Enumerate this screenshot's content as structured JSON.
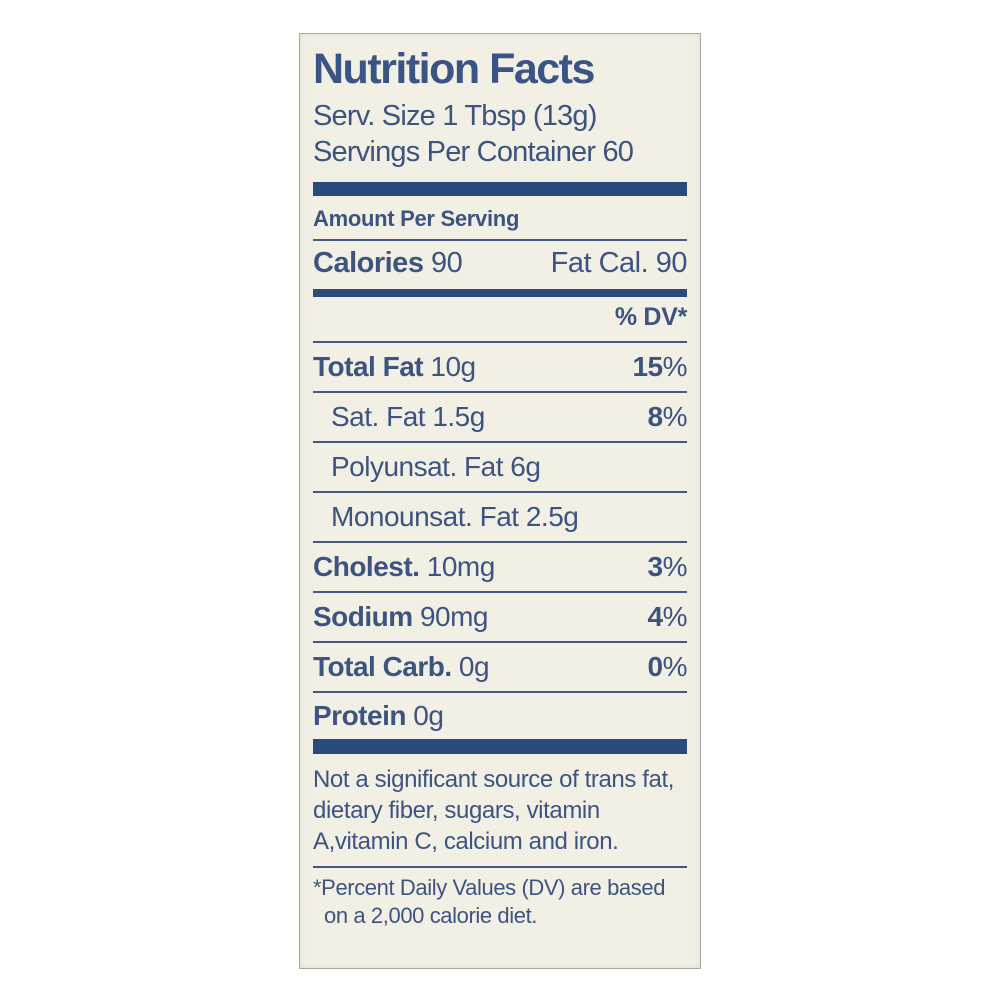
{
  "label": {
    "title": "Nutrition Facts",
    "serving_size": "Serv. Size 1 Tbsp (13g)",
    "servings_per_container": "Servings Per Container 60",
    "amount_per_serving": "Amount Per Serving",
    "calories_label": "Calories",
    "calories_value": "90",
    "fat_calories": "Fat Cal. 90",
    "dv_header": "% DV*",
    "rows": [
      {
        "label": "Total Fat",
        "value": "10g",
        "dv": "15",
        "bold": true,
        "indent": false
      },
      {
        "label": "Sat. Fat",
        "value": "1.5g",
        "dv": "8",
        "bold": false,
        "indent": true
      },
      {
        "label": "Polyunsat. Fat",
        "value": "6g",
        "dv": "",
        "bold": false,
        "indent": true
      },
      {
        "label": "Monounsat. Fat",
        "value": "2.5g",
        "dv": "",
        "bold": false,
        "indent": true
      },
      {
        "label": "Cholest.",
        "value": "10mg",
        "dv": "3",
        "bold": true,
        "indent": false
      },
      {
        "label": "Sodium",
        "value": "90mg",
        "dv": "4",
        "bold": true,
        "indent": false
      },
      {
        "label": "Total Carb.",
        "value": "0g",
        "dv": "0",
        "bold": true,
        "indent": false
      },
      {
        "label": "Protein",
        "value": "0g",
        "dv": "",
        "bold": true,
        "indent": false
      }
    ],
    "percent_sign": "%",
    "not_significant": "Not a significant source of trans fat, dietary fiber, sugars, vitamin A,vitamin C, calcium and iron.",
    "footnote_star": "*",
    "footnote": "Percent Daily Values (DV) are based on a 2,000 calorie diet.",
    "colors": {
      "text": "#3e5480",
      "bar": "#2b4a7c",
      "label_background": "#f2f0e4",
      "page_background": "#ffffff"
    }
  }
}
